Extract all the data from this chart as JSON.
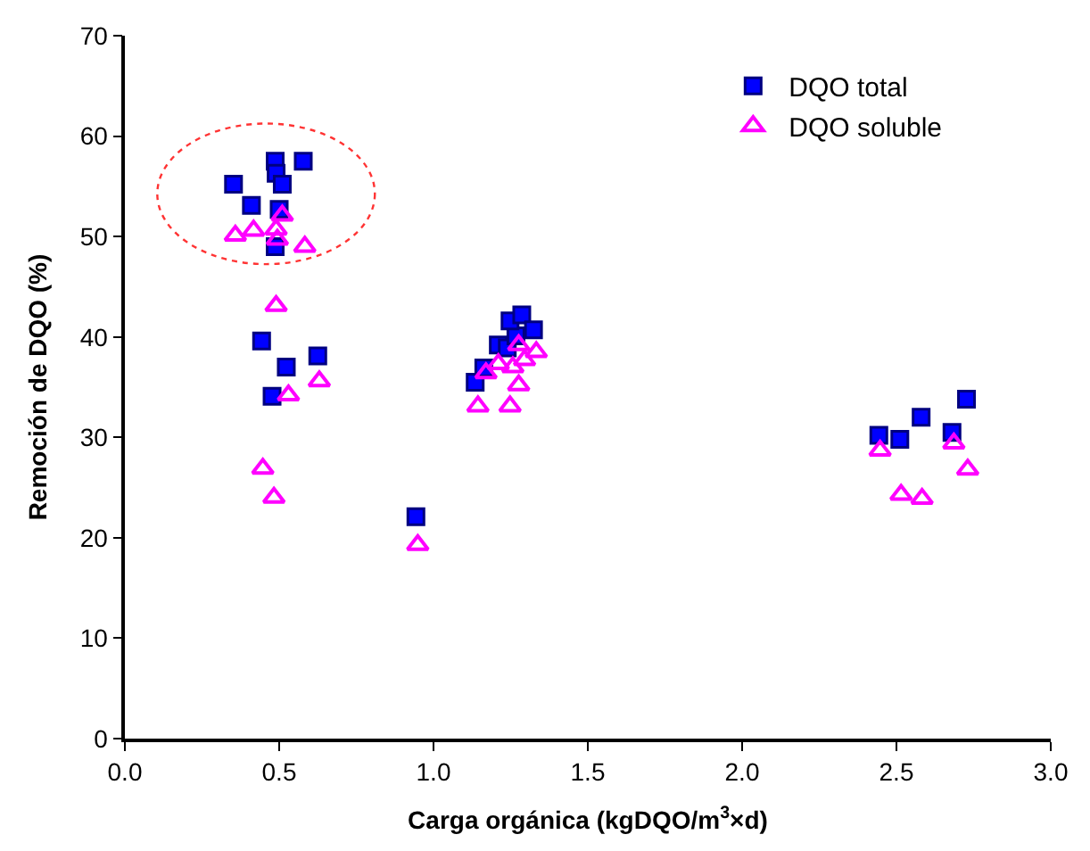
{
  "chart_data": {
    "type": "scatter",
    "xlabel": "Carga orgánica (kgDQO/m$^{3}$×d)",
    "ylabel": "Remoción de DQO (%)",
    "xlim": [
      0,
      3
    ],
    "xticks": [
      {
        "value": 0,
        "label": "0.0"
      },
      {
        "value": 0.5,
        "label": "0.5"
      },
      {
        "value": 1,
        "label": "1.0"
      },
      {
        "value": 1.5,
        "label": "1.5"
      },
      {
        "value": 2,
        "label": "2.0"
      },
      {
        "value": 2.5,
        "label": "2.5"
      },
      {
        "value": 3,
        "label": "3.0"
      }
    ],
    "ylim": [
      0,
      70
    ],
    "yticks": [
      0,
      10,
      20,
      30,
      40,
      50,
      60,
      70
    ],
    "legend": "top right",
    "series": [
      {
        "name": "DQO total",
        "color": "#0000ff",
        "marker": "square",
        "x": [
          0.487,
          0.578,
          0.49,
          0.51,
          0.352,
          0.41,
          0.5,
          0.487,
          0.443,
          0.625,
          0.523,
          0.477,
          0.943,
          1.135,
          1.163,
          1.21,
          1.239,
          1.267,
          1.248,
          1.286,
          1.324,
          2.443,
          2.511,
          2.58,
          2.68,
          2.727
        ],
        "values": [
          57.5,
          57.5,
          56.3,
          55.2,
          55.2,
          53.1,
          52.7,
          49.0,
          39.6,
          38.1,
          37.0,
          34.1,
          22.1,
          35.5,
          36.9,
          39.2,
          38.9,
          40.1,
          41.6,
          42.2,
          40.7,
          30.2,
          29.8,
          32.0,
          30.5,
          33.8
        ]
      },
      {
        "name": "DQO soluble",
        "color": "#ff00ff",
        "marker": "triangle",
        "x": [
          0.358,
          0.417,
          0.49,
          0.51,
          0.494,
          0.583,
          0.49,
          0.63,
          0.53,
          0.447,
          0.483,
          0.949,
          1.144,
          1.248,
          1.276,
          1.17,
          1.21,
          1.257,
          1.276,
          1.333,
          1.295,
          2.447,
          2.515,
          2.583,
          2.686,
          2.731
        ],
        "values": [
          50.1,
          50.6,
          50.7,
          52.1,
          49.7,
          49.0,
          43.1,
          35.6,
          34.2,
          26.9,
          24.0,
          19.3,
          33.1,
          33.1,
          35.2,
          36.4,
          37.3,
          37.0,
          39.2,
          38.5,
          37.7,
          28.7,
          24.3,
          23.9,
          29.4,
          26.8
        ]
      }
    ]
  }
}
